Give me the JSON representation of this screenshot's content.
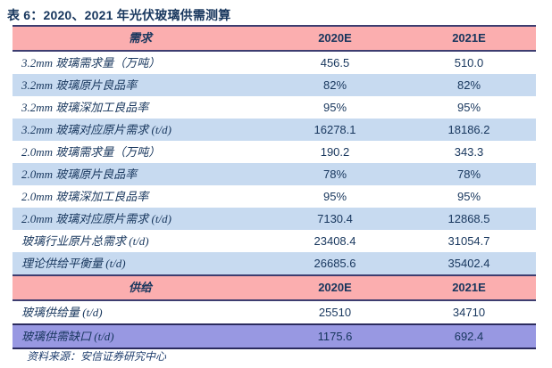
{
  "title": "表 6：2020、2021 年光伏玻璃供需测算",
  "colors": {
    "header_pink": "#FBAEAF",
    "row_light_blue": "#C7DAF0",
    "highlight_periwinkle": "#9898E2",
    "text_navy": "#17365D",
    "border_navy": "#3D3D70"
  },
  "table": {
    "demand_header": {
      "label": "需求",
      "col2020": "2020E",
      "col2021": "2021E"
    },
    "demand_rows": [
      {
        "label": "3.2mm 玻璃需求量（万吨）",
        "v2020": "456.5",
        "v2021": "510.0"
      },
      {
        "label": "3.2mm 玻璃原片良品率",
        "v2020": "82%",
        "v2021": "82%"
      },
      {
        "label": "3.2mm 玻璃深加工良品率",
        "v2020": "95%",
        "v2021": "95%"
      },
      {
        "label": "3.2mm 玻璃对应原片需求 (t/d)",
        "v2020": "16278.1",
        "v2021": "18186.2"
      },
      {
        "label": "2.0mm 玻璃需求量（万吨）",
        "v2020": "190.2",
        "v2021": "343.3"
      },
      {
        "label": "2.0mm 玻璃原片良品率",
        "v2020": "78%",
        "v2021": "78%"
      },
      {
        "label": "2.0mm 玻璃深加工良品率",
        "v2020": "95%",
        "v2021": "95%"
      },
      {
        "label": "2.0mm 玻璃对应原片需求 (t/d)",
        "v2020": "7130.4",
        "v2021": "12868.5"
      },
      {
        "label": "玻璃行业原片总需求 (t/d)",
        "v2020": "23408.4",
        "v2021": "31054.7"
      },
      {
        "label": "理论供给平衡量 (t/d)",
        "v2020": "26685.6",
        "v2021": "35402.4"
      }
    ],
    "supply_header": {
      "label": "供给",
      "col2020": "2020E",
      "col2021": "2021E"
    },
    "supply_rows": [
      {
        "label": "玻璃供给量 (t/d)",
        "v2020": "25510",
        "v2021": "34710"
      },
      {
        "label": "玻璃供需缺口 (t/d)",
        "v2020": "1175.6",
        "v2021": "692.4"
      }
    ]
  },
  "footer": {
    "source": "资料来源：安信证券研究中心"
  }
}
